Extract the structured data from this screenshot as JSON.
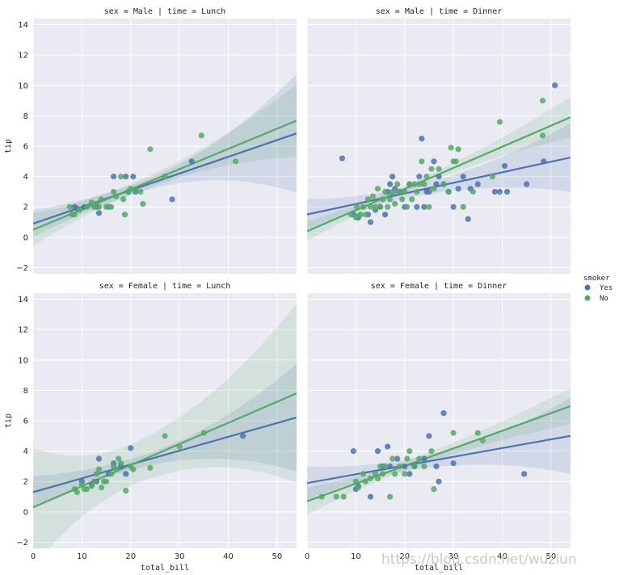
{
  "chart_data": {
    "type": "scatter",
    "x_label": "total_bill",
    "y_label": "tip",
    "x_ticks": [
      "0",
      "10",
      "20",
      "30",
      "40",
      "50"
    ],
    "y_ticks": [
      "−2",
      "0",
      "2",
      "4",
      "6",
      "8",
      "10",
      "12",
      "14"
    ],
    "xlim": [
      0,
      54
    ],
    "ylim": [
      -2.4,
      14.4
    ],
    "legend": {
      "title": "smoker",
      "position": "right",
      "entries": [
        {
          "label": "Yes",
          "color": "#4c72b0"
        },
        {
          "label": "No",
          "color": "#55a868"
        }
      ]
    },
    "colors": {
      "Yes": "#4c72b0",
      "No": "#55a868",
      "band_yes": "#4c72b0",
      "band_no": "#55a868",
      "bg": "#eaeaf2",
      "grid": "#ffffff"
    },
    "grid": true,
    "facets": [
      {
        "title": "sex = Male | time = Lunch",
        "series": [
          {
            "name": "Yes",
            "line": {
              "intercept": 0.9,
              "slope": 0.11
            },
            "band": {
              "lo0": 0.2,
              "hi0": 2.0,
              "lo1": 3.0,
              "hi1": 10.8
            },
            "points": [
              [
                8.5,
                2.0
              ],
              [
                9.0,
                1.9
              ],
              [
                10.5,
                2.0
              ],
              [
                13.5,
                1.6
              ],
              [
                13.0,
                2.0
              ],
              [
                15.5,
                2.0
              ],
              [
                16.5,
                4.0
              ],
              [
                19.0,
                4.0
              ],
              [
                19.5,
                3.0
              ],
              [
                20.5,
                4.0
              ],
              [
                21,
                3.0
              ],
              [
                28.5,
                2.5
              ],
              [
                32.5,
                5.0
              ]
            ]
          },
          {
            "name": "No",
            "line": {
              "intercept": 0.5,
              "slope": 0.133
            },
            "band": {
              "lo0": -0.6,
              "hi0": 1.5,
              "lo1": 5.0,
              "hi1": 9.8
            },
            "points": [
              [
                7.5,
                2.0
              ],
              [
                8.0,
                1.5
              ],
              [
                8.5,
                1.5
              ],
              [
                9.5,
                1.8
              ],
              [
                11.0,
                2.0
              ],
              [
                12.0,
                2.3
              ],
              [
                12.5,
                2.0
              ],
              [
                13.0,
                2.2
              ],
              [
                13.5,
                2.0
              ],
              [
                14.0,
                2.5
              ],
              [
                15.0,
                2.0
              ],
              [
                15.5,
                2.0
              ],
              [
                16.0,
                2.0
              ],
              [
                16.5,
                3.0
              ],
              [
                17.0,
                2.7
              ],
              [
                18.0,
                4.0
              ],
              [
                18.5,
                2.5
              ],
              [
                18.8,
                1.5
              ],
              [
                19.5,
                3.0
              ],
              [
                20.0,
                3.2
              ],
              [
                21.0,
                3.1
              ],
              [
                22.0,
                3.0
              ],
              [
                22.5,
                2.2
              ],
              [
                24.0,
                5.8
              ],
              [
                27.0,
                4.0
              ],
              [
                34.5,
                6.7
              ],
              [
                41.5,
                5.0
              ]
            ]
          }
        ]
      },
      {
        "title": "sex = Male | time = Dinner",
        "series": [
          {
            "name": "Yes",
            "line": {
              "intercept": 1.5,
              "slope": 0.0695
            },
            "band": {
              "lo0": 0.5,
              "hi0": 2.5,
              "lo1": 3.0,
              "hi1": 7.5
            },
            "points": [
              [
                7.2,
                5.2
              ],
              [
                9.5,
                1.5
              ],
              [
                10.5,
                1.3
              ],
              [
                12.5,
                1.5
              ],
              [
                13.0,
                1.0
              ],
              [
                14.0,
                1.8
              ],
              [
                15.0,
                2.0
              ],
              [
                16.0,
                1.5
              ],
              [
                16.5,
                3.0
              ],
              [
                17.0,
                3.5
              ],
              [
                17.5,
                4.0
              ],
              [
                18.0,
                3.2
              ],
              [
                19.0,
                3.0
              ],
              [
                20.0,
                2.0
              ],
              [
                21.0,
                3.5
              ],
              [
                22.5,
                2.0
              ],
              [
                23.0,
                4.0
              ],
              [
                23.5,
                6.5
              ],
              [
                24.0,
                2.0
              ],
              [
                24.5,
                3.0
              ],
              [
                25.0,
                3.0
              ],
              [
                26.0,
                5.0
              ],
              [
                26.5,
                3.5
              ],
              [
                27.0,
                4.0
              ],
              [
                28.0,
                3.5
              ],
              [
                29.0,
                3.0
              ],
              [
                30.0,
                2.0
              ],
              [
                31.0,
                3.2
              ],
              [
                32.0,
                4.0
              ],
              [
                33.0,
                1.2
              ],
              [
                33.5,
                3.2
              ],
              [
                35.0,
                3.5
              ],
              [
                38.5,
                3.0
              ],
              [
                39.5,
                3.0
              ],
              [
                40.5,
                4.7
              ],
              [
                41.0,
                3.0
              ],
              [
                45.0,
                3.5
              ],
              [
                50.8,
                10.0
              ],
              [
                48.5,
                5.0
              ]
            ]
          },
          {
            "name": "No",
            "line": {
              "intercept": 0.4,
              "slope": 0.139
            },
            "band": {
              "lo0": -0.3,
              "hi0": 1.0,
              "lo1": 6.5,
              "hi1": 9.2
            },
            "points": [
              [
                9.0,
                1.5
              ],
              [
                10.0,
                1.3
              ],
              [
                10.2,
                2.0
              ],
              [
                10.5,
                1.4
              ],
              [
                11.0,
                1.5
              ],
              [
                11.5,
                2.0
              ],
              [
                12.0,
                1.5
              ],
              [
                12.5,
                2.5
              ],
              [
                13.0,
                2.0
              ],
              [
                13.5,
                2.7
              ],
              [
                14.0,
                2.0
              ],
              [
                14.5,
                3.2
              ],
              [
                15.0,
                2.0
              ],
              [
                15.5,
                2.5
              ],
              [
                16.0,
                3.0
              ],
              [
                16.5,
                2.0
              ],
              [
                17.0,
                2.5
              ],
              [
                17.5,
                3.0
              ],
              [
                18.0,
                2.2
              ],
              [
                18.5,
                3.5
              ],
              [
                19.0,
                3.0
              ],
              [
                19.5,
                2.5
              ],
              [
                20.0,
                3.0
              ],
              [
                20.5,
                2.0
              ],
              [
                21.0,
                3.5
              ],
              [
                21.5,
                2.5
              ],
              [
                22.0,
                3.5
              ],
              [
                22.5,
                3.0
              ],
              [
                23.0,
                3.5
              ],
              [
                23.5,
                5.0
              ],
              [
                24.0,
                3.5
              ],
              [
                24.5,
                4.0
              ],
              [
                25.0,
                2.0
              ],
              [
                25.5,
                4.5
              ],
              [
                26.0,
                3.2
              ],
              [
                27.0,
                4.5
              ],
              [
                28.0,
                3.5
              ],
              [
                29.0,
                3.0
              ],
              [
                29.5,
                5.9
              ],
              [
                30.0,
                5.0
              ],
              [
                30.5,
                5.0
              ],
              [
                31.0,
                5.8
              ],
              [
                32.0,
                2.0
              ],
              [
                34.0,
                3.0
              ],
              [
                38.0,
                4.0
              ],
              [
                39.5,
                7.6
              ],
              [
                48.3,
                9.0
              ],
              [
                48.3,
                6.7
              ]
            ]
          }
        ]
      },
      {
        "title": "sex = Female | time = Lunch",
        "series": [
          {
            "name": "Yes",
            "line": {
              "intercept": 1.3,
              "slope": 0.091
            },
            "band": {
              "lo0": 0.3,
              "hi0": 2.4,
              "lo1": 2.7,
              "hi1": 9.8
            },
            "points": [
              [
                10.0,
                2.0
              ],
              [
                12.0,
                1.8
              ],
              [
                13.5,
                3.5
              ],
              [
                13.0,
                2.0
              ],
              [
                15.5,
                2.5
              ],
              [
                16.5,
                3.2
              ],
              [
                18.0,
                3.0
              ],
              [
                19.0,
                2.5
              ],
              [
                20.0,
                4.2
              ],
              [
                43.0,
                5.0
              ]
            ]
          },
          {
            "name": "No",
            "line": {
              "intercept": 0.3,
              "slope": 0.139
            },
            "band": {
              "lo0": -3.8,
              "hi0": 4.0,
              "lo1": 2.0,
              "hi1": 13.8
            },
            "points": [
              [
                8.5,
                1.5
              ],
              [
                9.0,
                1.3
              ],
              [
                10.0,
                1.8
              ],
              [
                10.5,
                1.5
              ],
              [
                11.0,
                1.5
              ],
              [
                12.0,
                1.7
              ],
              [
                12.5,
                2.0
              ],
              [
                13.0,
                2.5
              ],
              [
                13.5,
                2.8
              ],
              [
                14.0,
                1.6
              ],
              [
                14.5,
                2.0
              ],
              [
                15.0,
                2.0
              ],
              [
                16.0,
                2.5
              ],
              [
                16.5,
                3.0
              ],
              [
                17.0,
                2.8
              ],
              [
                17.5,
                3.5
              ],
              [
                18.0,
                3.2
              ],
              [
                19.0,
                1.4
              ],
              [
                20.0,
                3.0
              ],
              [
                20.5,
                2.8
              ],
              [
                24.0,
                2.9
              ],
              [
                27.0,
                5.0
              ],
              [
                30.0,
                4.3
              ],
              [
                35.0,
                5.2
              ]
            ]
          }
        ]
      },
      {
        "title": "sex = Female | time = Dinner",
        "series": [
          {
            "name": "Yes",
            "line": {
              "intercept": 1.9,
              "slope": 0.0575
            },
            "band": {
              "lo0": 0.8,
              "hi0": 3.0,
              "lo1": 2.5,
              "hi1": 7.5
            },
            "points": [
              [
                9.5,
                4.0
              ],
              [
                10.0,
                1.5
              ],
              [
                10.5,
                1.7
              ],
              [
                13.0,
                1.0
              ],
              [
                14.5,
                4.0
              ],
              [
                15.5,
                3.0
              ],
              [
                16.5,
                4.3
              ],
              [
                17.0,
                3.0
              ],
              [
                18.5,
                3.5
              ],
              [
                20.0,
                3.0
              ],
              [
                21.0,
                2.5
              ],
              [
                22.0,
                3.0
              ],
              [
                24.0,
                3.5
              ],
              [
                25.0,
                5.0
              ],
              [
                26.5,
                3.0
              ],
              [
                27.0,
                2.0
              ],
              [
                28.0,
                6.5
              ],
              [
                30.0,
                3.2
              ],
              [
                44.5,
                2.5
              ]
            ]
          },
          {
            "name": "No",
            "line": {
              "intercept": 0.7,
              "slope": 0.116
            },
            "band": {
              "lo0": -0.2,
              "hi0": 1.6,
              "lo1": 5.8,
              "hi1": 8.2
            },
            "points": [
              [
                3.0,
                1.0
              ],
              [
                6.0,
                1.0
              ],
              [
                7.5,
                1.0
              ],
              [
                10.0,
                2.0
              ],
              [
                10.5,
                1.6
              ],
              [
                11.5,
                2.5
              ],
              [
                12.0,
                2.0
              ],
              [
                13.0,
                2.2
              ],
              [
                14.0,
                2.5
              ],
              [
                14.5,
                2.2
              ],
              [
                15.0,
                3.0
              ],
              [
                15.5,
                2.5
              ],
              [
                16.0,
                3.0
              ],
              [
                17.0,
                1.0
              ],
              [
                17.5,
                3.5
              ],
              [
                18.0,
                2.5
              ],
              [
                19.0,
                3.0
              ],
              [
                20.0,
                2.5
              ],
              [
                20.5,
                3.5
              ],
              [
                21.0,
                4.0
              ],
              [
                22.0,
                3.0
              ],
              [
                23.0,
                3.5
              ],
              [
                24.0,
                3.0
              ],
              [
                25.5,
                4.0
              ],
              [
                26.0,
                1.5
              ],
              [
                30.0,
                5.2
              ],
              [
                35.0,
                5.2
              ],
              [
                36.0,
                4.7
              ]
            ]
          }
        ]
      }
    ]
  },
  "watermark": "https://blog.csdn.net/wuzlun"
}
